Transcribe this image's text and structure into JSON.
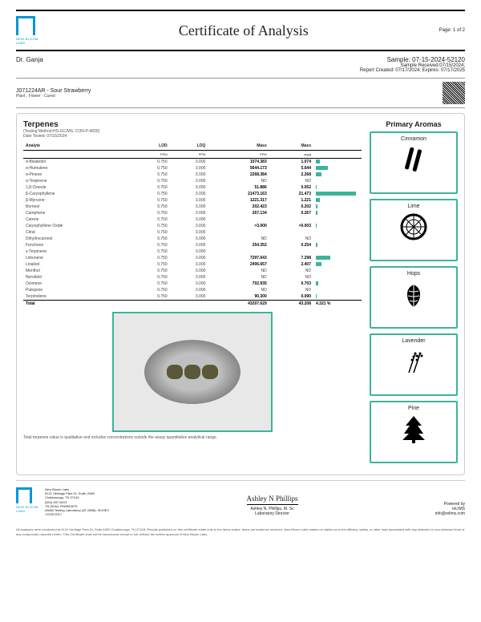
{
  "header": {
    "logo_text": "NEW BLOOM LABS",
    "title": "Certificate of Analysis",
    "page": "Page: 1 of 2"
  },
  "client": "Dr. Ganja",
  "sample": {
    "id": "Sample: 07-15-2024-52120",
    "received": "Sample Received:07/15/2024;",
    "report": "Report Created: 07/17/2024; Expires: 07/17/2025"
  },
  "product": {
    "code": "J071224AR - Sour Strawberry",
    "sub": "Plant , Flower - Cured"
  },
  "terpenes": {
    "title": "Terpenes",
    "method": "(Testing Method:HS-GC/MS, CON-P-4000)",
    "date": "Date Tested: 07/15/2024",
    "headers": [
      "Analyte",
      "LOD",
      "LOQ",
      "Mass",
      "Mass",
      ""
    ],
    "units": [
      "",
      "PPM",
      "PPM",
      "PPM",
      "mg/g",
      ""
    ],
    "rows": [
      {
        "a": "α-Bisabolol",
        "lod": "0.750",
        "loq": "3.000",
        "m1": "1074.383",
        "m2": "1.074",
        "bar": 5
      },
      {
        "a": "α-Humulene",
        "lod": "0.750",
        "loq": "3.000",
        "m1": "5644.173",
        "m2": "5.644",
        "bar": 15
      },
      {
        "a": "α-Pinene",
        "lod": "0.750",
        "loq": "3.000",
        "m1": "2268.384",
        "m2": "2.268",
        "bar": 7
      },
      {
        "a": "α-Terpinene",
        "lod": "0.750",
        "loq": "3.000",
        "m1": "ND",
        "m2": "ND",
        "bar": 0
      },
      {
        "a": "1,8-Cineole",
        "lod": "0.750",
        "loq": "3.000",
        "m1": "51.886",
        "m2": "0.052",
        "bar": 1
      },
      {
        "a": "β-Caryophyllene",
        "lod": "0.750",
        "loq": "3.000",
        "m1": "21473.163",
        "m2": "21.473",
        "bar": 50
      },
      {
        "a": "β-Myrcene",
        "lod": "0.750",
        "loq": "3.000",
        "m1": "1221.317",
        "m2": "1.221",
        "bar": 5
      },
      {
        "a": "Borneol",
        "lod": "0.750",
        "loq": "3.000",
        "m1": "202.423",
        "m2": "0.202",
        "bar": 2
      },
      {
        "a": "Camphene",
        "lod": "0.750",
        "loq": "3.000",
        "m1": "267.134",
        "m2": "0.267",
        "bar": 2
      },
      {
        "a": "Carene",
        "lod": "0.750",
        "loq": "3.000",
        "m1": "<LOQ",
        "m2": "<LOQ",
        "bar": 0
      },
      {
        "a": "Caryophyllene Oxide",
        "lod": "0.750",
        "loq": "3.000",
        "m1": ">3.000",
        "m2": ">0.003",
        "bar": 1
      },
      {
        "a": "Citral",
        "lod": "0.750",
        "loq": "3.000",
        "m1": "<LOQ",
        "m2": "<LOQ",
        "bar": 0
      },
      {
        "a": "Dihydrocarveol",
        "lod": "0.750",
        "loq": "3.000",
        "m1": "ND",
        "m2": "ND",
        "bar": 0
      },
      {
        "a": "Fenchone",
        "lod": "0.750",
        "loq": "3.000",
        "m1": "254.352",
        "m2": "0.254",
        "bar": 2
      },
      {
        "a": "γ-Terpinene",
        "lod": "0.750",
        "loq": "3.000",
        "m1": "<LOQ",
        "m2": "<LOQ",
        "bar": 0
      },
      {
        "a": "Limonene",
        "lod": "0.750",
        "loq": "3.000",
        "m1": "7297.643",
        "m2": "7.298",
        "bar": 18
      },
      {
        "a": "Linalool",
        "lod": "0.750",
        "loq": "3.000",
        "m1": "2406.657",
        "m2": "2.407",
        "bar": 7
      },
      {
        "a": "Menthol",
        "lod": "0.750",
        "loq": "3.000",
        "m1": "ND",
        "m2": "ND",
        "bar": 0
      },
      {
        "a": "Nerolidol",
        "lod": "0.750",
        "loq": "3.000",
        "m1": "ND",
        "m2": "ND",
        "bar": 0
      },
      {
        "a": "Ocimene",
        "lod": "0.750",
        "loq": "3.000",
        "m1": "702.935",
        "m2": "0.703",
        "bar": 3
      },
      {
        "a": "Pulegone",
        "lod": "0.750",
        "loq": "3.000",
        "m1": "ND",
        "m2": "ND",
        "bar": 0
      },
      {
        "a": "Terpinolene",
        "lod": "0.750",
        "loq": "3.000",
        "m1": "90.300",
        "m2": "0.090",
        "bar": 1
      }
    ],
    "total": {
      "a": "Total",
      "m1": "43207.629",
      "m2": "43.208",
      "pct": "4.321 %"
    },
    "disclaimer": "Total terpenes value is qualitative and includes concentrations outside the assay quantitative analytical range."
  },
  "aromas": {
    "title": "Primary Aromas",
    "items": [
      {
        "name": "Cinnamon",
        "icon": "cinnamon"
      },
      {
        "name": "Lime",
        "icon": "lime"
      },
      {
        "name": "Hops",
        "icon": "hops"
      },
      {
        "name": "Lavender",
        "icon": "lavender"
      },
      {
        "name": "Pine",
        "icon": "pine"
      }
    ]
  },
  "footer": {
    "address": [
      "New Bloom Labs",
      "6121 Heritage Park Dr, Suite, A500",
      "Chattanooga, TN 37416",
      "(844) 837-8223",
      "TN DEA#: RN0563975",
      "ANAB Testing Laboratory (AT-2868): ISO/IEC",
      "17025:2017"
    ],
    "sig_name": "Ashley N Phillips",
    "sig_title": "Ashley N. Phillips, M. Sc",
    "sig_role": "Laboratory Director",
    "powered": "Powered by",
    "relims": "reLIMS",
    "email": "info@relims.com",
    "fineprint": "All analyses were conducted at 6121 Heritage Park Dr, Suite A500 Chattanooga, TN 37416. Results published on this certificate relate only to the items tested. Items are tested as received. New Bloom Labs makes no claims as to the efficacy, safety, or other risks associated with any detected or non-detected level of any compounds reported herein. This Certificate shall not be reproduced except in full, without the written approval of New Bloom Labs."
  },
  "colors": {
    "accent": "#3bb599",
    "brand": "#0097d6"
  }
}
